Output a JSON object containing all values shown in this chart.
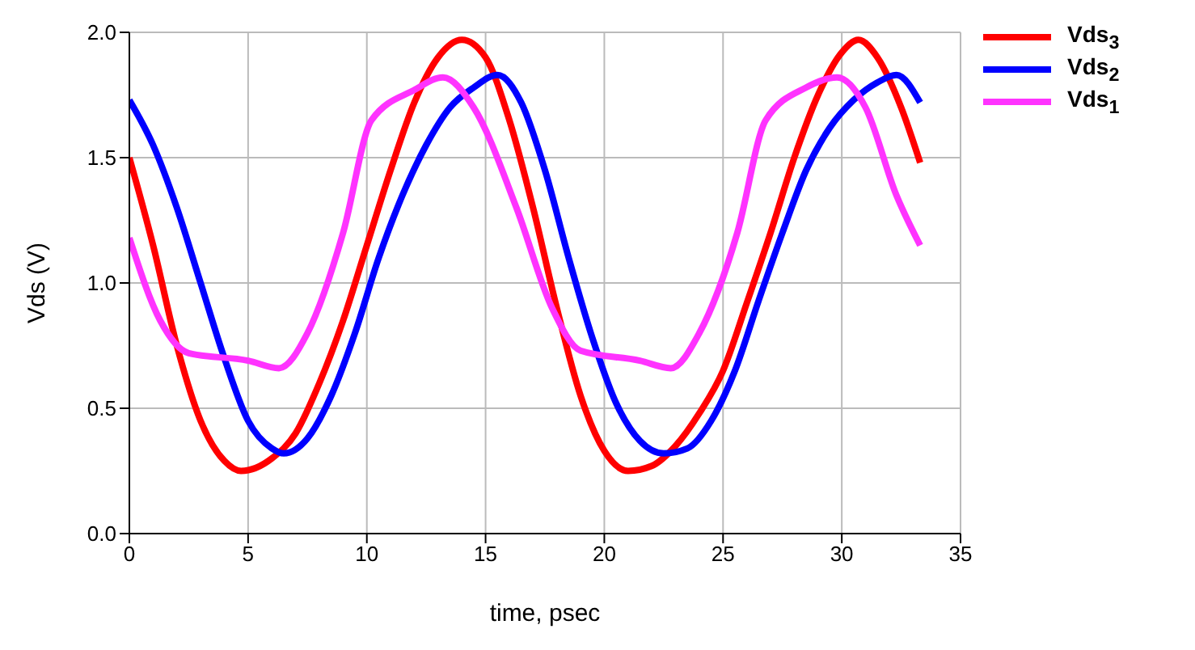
{
  "chart_data": {
    "type": "line",
    "xlabel": "time, psec",
    "ylabel": "Vds (V)",
    "xlim": [
      0,
      35
    ],
    "xticks": [
      0,
      5,
      10,
      15,
      20,
      25,
      30,
      35
    ],
    "ylim": [
      0,
      2
    ],
    "yticks": [
      {
        "value": 0,
        "label": "0.0"
      },
      {
        "value": 0.5,
        "label": "0.5"
      },
      {
        "value": 1,
        "label": "1.0"
      },
      {
        "value": 1.5,
        "label": "1.5"
      },
      {
        "value": 2,
        "label": "2.0"
      }
    ],
    "grid": true,
    "legend": "right",
    "marker": "none",
    "line_style": "solid",
    "series": [
      {
        "name": "Vds$_{3}$",
        "color": "#ff0000",
        "x": [
          0,
          1,
          2,
          3,
          4,
          4.7,
          6,
          7,
          8,
          9,
          10,
          11,
          12,
          13,
          14,
          15,
          16,
          17,
          18,
          19,
          20,
          21,
          22,
          23,
          24,
          25,
          26,
          27,
          28,
          29,
          30,
          30.7,
          31.5,
          32.5,
          33.3
        ],
        "values": [
          1.5,
          1.15,
          0.75,
          0.45,
          0.29,
          0.25,
          0.3,
          0.4,
          0.6,
          0.85,
          1.15,
          1.45,
          1.72,
          1.9,
          1.97,
          1.9,
          1.65,
          1.3,
          0.9,
          0.55,
          0.33,
          0.25,
          0.27,
          0.35,
          0.48,
          0.65,
          0.92,
          1.2,
          1.5,
          1.75,
          1.92,
          1.97,
          1.9,
          1.7,
          1.48
        ]
      },
      {
        "name": "Vds$_{2}$",
        "color": "#0000ff",
        "x": [
          0,
          1,
          2,
          3,
          4,
          5,
          6,
          6.5,
          7.5,
          8.5,
          9.5,
          10.5,
          11.5,
          12.5,
          13.5,
          14.5,
          15.5,
          16.5,
          17.5,
          18.5,
          19.5,
          20.5,
          21.5,
          22.5,
          23.5,
          24.5,
          25.5,
          26.5,
          27.5,
          28.5,
          29.5,
          30.5,
          31.5,
          32.3,
          33.3
        ],
        "values": [
          1.73,
          1.55,
          1.3,
          1.0,
          0.7,
          0.45,
          0.34,
          0.32,
          0.38,
          0.55,
          0.8,
          1.1,
          1.35,
          1.55,
          1.7,
          1.78,
          1.83,
          1.72,
          1.45,
          1.1,
          0.78,
          0.52,
          0.37,
          0.32,
          0.34,
          0.45,
          0.65,
          0.93,
          1.2,
          1.45,
          1.62,
          1.73,
          1.8,
          1.83,
          1.72
        ]
      },
      {
        "name": "Vds$_{1}$",
        "color": "#ff33ff",
        "x": [
          0,
          1.3,
          2.5,
          5,
          6.3,
          7.5,
          9,
          10.2,
          12,
          13.2,
          14.5,
          16.3,
          17.8,
          19,
          21.5,
          22.8,
          24,
          25.6,
          26.8,
          28.5,
          29.8,
          31,
          32.3,
          33.3
        ],
        "values": [
          1.18,
          0.85,
          0.72,
          0.69,
          0.66,
          0.8,
          1.2,
          1.65,
          1.77,
          1.82,
          1.7,
          1.3,
          0.9,
          0.73,
          0.69,
          0.66,
          0.8,
          1.2,
          1.65,
          1.78,
          1.82,
          1.7,
          1.35,
          1.15
        ]
      }
    ]
  }
}
